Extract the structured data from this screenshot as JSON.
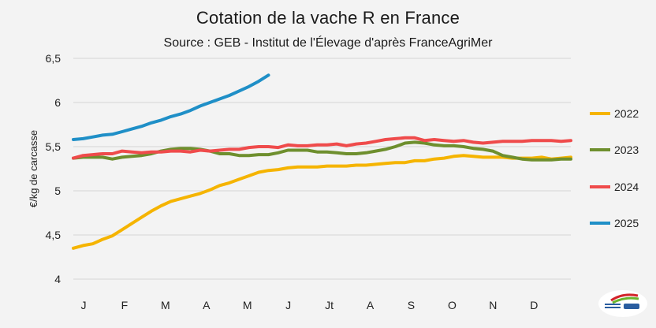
{
  "chart_data": {
    "type": "line",
    "title": "Cotation de la vache R en France",
    "subtitle": "Source : GEB - Institut de l'Élevage d'après FranceAgriMer",
    "xlabel": "",
    "ylabel": "€/kg de carcasse",
    "ylim": [
      4,
      6.5
    ],
    "yticks": [
      "4",
      "4,5",
      "5",
      "5,5",
      "6",
      "6,5"
    ],
    "ytick_values": [
      4,
      4.5,
      5,
      5.5,
      6,
      6.5
    ],
    "x_unit": "week",
    "xlim": [
      1,
      52
    ],
    "month_labels": [
      "J",
      "F",
      "M",
      "A",
      "M",
      "J",
      "Jt",
      "A",
      "S",
      "O",
      "N",
      "D"
    ],
    "grid": "horizontal",
    "legend_position": "right",
    "series": [
      {
        "name": "2022",
        "color": "#f5b400",
        "x": [
          1,
          2,
          3,
          4,
          5,
          6,
          7,
          8,
          9,
          10,
          11,
          12,
          13,
          14,
          15,
          16,
          17,
          18,
          19,
          20,
          21,
          22,
          23,
          24,
          25,
          26,
          27,
          28,
          29,
          30,
          31,
          32,
          33,
          34,
          35,
          36,
          37,
          38,
          39,
          40,
          41,
          42,
          43,
          44,
          45,
          46,
          47,
          48,
          49,
          50,
          51,
          52
        ],
        "values": [
          4.35,
          4.38,
          4.4,
          4.45,
          4.49,
          4.56,
          4.63,
          4.7,
          4.77,
          4.83,
          4.88,
          4.91,
          4.94,
          4.97,
          5.01,
          5.06,
          5.09,
          5.13,
          5.17,
          5.21,
          5.23,
          5.24,
          5.26,
          5.27,
          5.27,
          5.27,
          5.28,
          5.28,
          5.28,
          5.29,
          5.29,
          5.3,
          5.31,
          5.32,
          5.32,
          5.34,
          5.34,
          5.36,
          5.37,
          5.39,
          5.4,
          5.39,
          5.38,
          5.38,
          5.38,
          5.37,
          5.37,
          5.37,
          5.38,
          5.36,
          5.37,
          5.38
        ]
      },
      {
        "name": "2023",
        "color": "#6e8f2e",
        "x": [
          1,
          2,
          3,
          4,
          5,
          6,
          7,
          8,
          9,
          10,
          11,
          12,
          13,
          14,
          15,
          16,
          17,
          18,
          19,
          20,
          21,
          22,
          23,
          24,
          25,
          26,
          27,
          28,
          29,
          30,
          31,
          32,
          33,
          34,
          35,
          36,
          37,
          38,
          39,
          40,
          41,
          42,
          43,
          44,
          45,
          46,
          47,
          48,
          49,
          50,
          51,
          52
        ],
        "values": [
          5.37,
          5.38,
          5.38,
          5.38,
          5.36,
          5.38,
          5.39,
          5.4,
          5.42,
          5.45,
          5.47,
          5.48,
          5.48,
          5.47,
          5.45,
          5.42,
          5.42,
          5.4,
          5.4,
          5.41,
          5.41,
          5.43,
          5.46,
          5.46,
          5.46,
          5.44,
          5.44,
          5.43,
          5.42,
          5.42,
          5.43,
          5.45,
          5.47,
          5.5,
          5.54,
          5.55,
          5.54,
          5.52,
          5.51,
          5.51,
          5.5,
          5.48,
          5.47,
          5.45,
          5.4,
          5.38,
          5.36,
          5.35,
          5.35,
          5.35,
          5.36,
          5.36
        ]
      },
      {
        "name": "2024",
        "color": "#ef4b4b",
        "x": [
          1,
          2,
          3,
          4,
          5,
          6,
          7,
          8,
          9,
          10,
          11,
          12,
          13,
          14,
          15,
          16,
          17,
          18,
          19,
          20,
          21,
          22,
          23,
          24,
          25,
          26,
          27,
          28,
          29,
          30,
          31,
          32,
          33,
          34,
          35,
          36,
          37,
          38,
          39,
          40,
          41,
          42,
          43,
          44,
          45,
          46,
          47,
          48,
          49,
          50,
          51,
          52
        ],
        "values": [
          5.37,
          5.4,
          5.41,
          5.42,
          5.42,
          5.45,
          5.44,
          5.43,
          5.44,
          5.44,
          5.45,
          5.45,
          5.44,
          5.46,
          5.45,
          5.46,
          5.47,
          5.47,
          5.49,
          5.5,
          5.5,
          5.49,
          5.52,
          5.51,
          5.51,
          5.52,
          5.52,
          5.53,
          5.51,
          5.53,
          5.54,
          5.56,
          5.58,
          5.59,
          5.6,
          5.6,
          5.57,
          5.58,
          5.57,
          5.56,
          5.57,
          5.55,
          5.54,
          5.55,
          5.56,
          5.56,
          5.56,
          5.57,
          5.57,
          5.57,
          5.56,
          5.57
        ]
      },
      {
        "name": "2025",
        "color": "#1f8fc7",
        "x": [
          1,
          2,
          3,
          4,
          5,
          6,
          7,
          8,
          9,
          10,
          11,
          12,
          13,
          14,
          15,
          16,
          17,
          18,
          19,
          20,
          21
        ],
        "values": [
          5.58,
          5.59,
          5.61,
          5.63,
          5.64,
          5.67,
          5.7,
          5.73,
          5.77,
          5.8,
          5.84,
          5.87,
          5.91,
          5.96,
          6.0,
          6.04,
          6.08,
          6.13,
          6.18,
          6.24,
          6.31
        ]
      }
    ]
  }
}
